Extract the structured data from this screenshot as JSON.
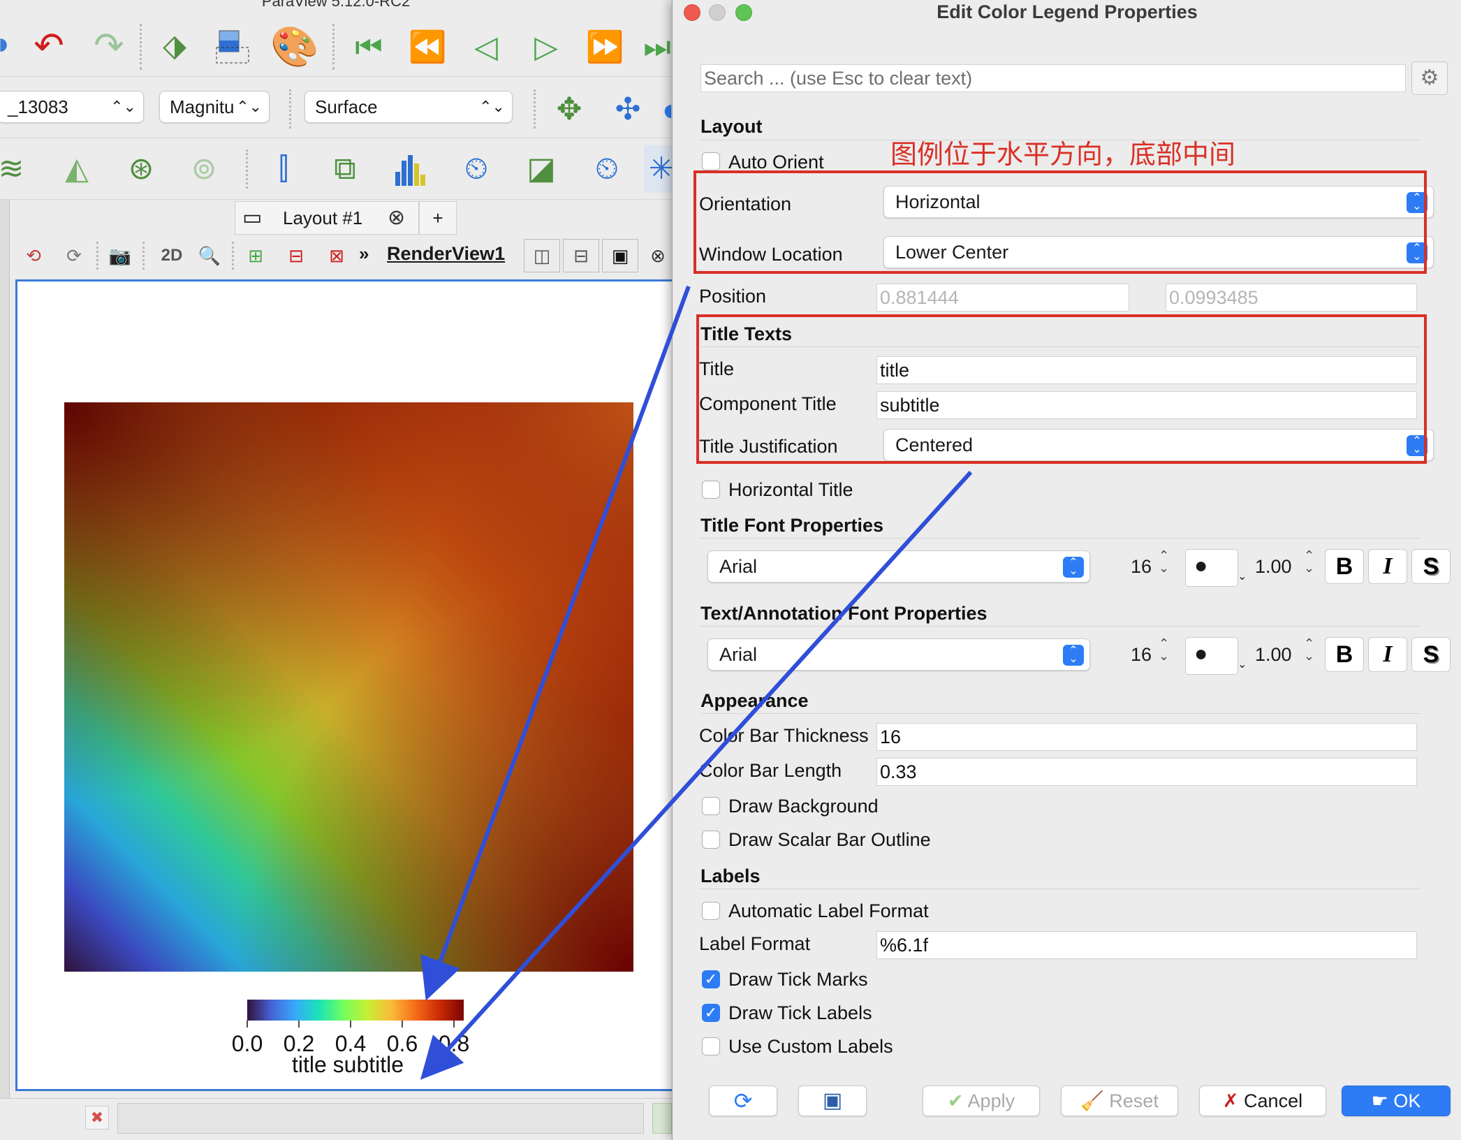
{
  "main_window": {
    "title": "ParaView 5.12.0-RC2",
    "source_combo": "_13083",
    "color_combo": "Magnitu",
    "representation_combo": "Surface",
    "layout_tab": "Layout #1",
    "add_tab": "+",
    "view_2d": "2D",
    "view_name": "RenderView1"
  },
  "render": {
    "tick_labels": [
      "0.0",
      "0.2",
      "0.4",
      "0.6",
      "0.8"
    ],
    "legend_title": "title subtitle",
    "colormap": [
      "#30123b",
      "#4662d7",
      "#36aaf9",
      "#1ae4b6",
      "#72fe5e",
      "#c8ef34",
      "#faba39",
      "#f66b19",
      "#ca2a04",
      "#7a0403"
    ]
  },
  "dialog": {
    "title": "Edit Color Legend Properties",
    "search_placeholder": "Search ... (use Esc to clear text)",
    "annotation": "图例位于水平方向，底部中间",
    "layout": {
      "section": "Layout",
      "auto_orient": "Auto Orient",
      "orientation_label": "Orientation",
      "orientation_value": "Horizontal",
      "window_location_label": "Window Location",
      "window_location_value": "Lower Center",
      "position_label": "Position",
      "position_x": "0.881444",
      "position_y": "0.0993485"
    },
    "title_texts": {
      "section": "Title Texts",
      "title_label": "Title",
      "title_value": "title",
      "component_label": "Component Title",
      "component_value": "subtitle",
      "justification_label": "Title Justification",
      "justification_value": "Centered",
      "horizontal_title": "Horizontal Title"
    },
    "title_font": {
      "section": "Title Font Properties",
      "family": "Arial",
      "size": "16",
      "opacity": "1.00",
      "bold": "B",
      "italic": "I",
      "shadow": "S"
    },
    "text_font": {
      "section": "Text/Annotation Font Properties",
      "family": "Arial",
      "size": "16",
      "opacity": "1.00",
      "bold": "B",
      "italic": "I",
      "shadow": "S"
    },
    "appearance": {
      "section": "Appearance",
      "thickness_label": "Color Bar Thickness",
      "thickness_value": "16",
      "length_label": "Color Bar Length",
      "length_value": "0.33",
      "draw_background": "Draw Background",
      "draw_outline": "Draw Scalar Bar Outline"
    },
    "labels": {
      "section": "Labels",
      "auto_format": "Automatic Label Format",
      "format_label": "Label Format",
      "format_value": "%6.1f",
      "tick_marks": "Draw Tick Marks",
      "tick_labels": "Draw Tick Labels",
      "custom_labels": "Use Custom Labels"
    },
    "buttons": {
      "apply": "Apply",
      "reset": "Reset",
      "cancel": "Cancel",
      "ok": "OK"
    }
  }
}
